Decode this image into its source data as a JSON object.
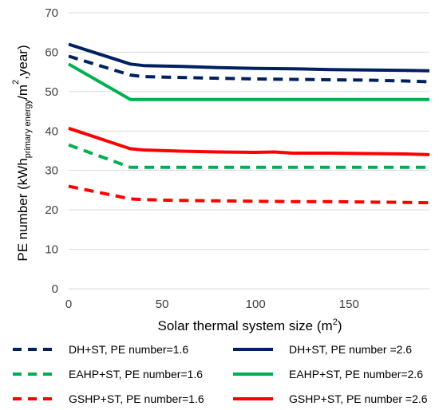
{
  "chart_data": {
    "type": "line",
    "xlabel": "Solar thermal system size (m",
    "xlabel_sup": "2",
    "xlabel_end": ")",
    "ylabel_parts": [
      {
        "t": "PE number (kWh",
        "style": "normal"
      },
      {
        "t": "primary energy",
        "style": "sub"
      },
      {
        "t": "/m",
        "style": "normal"
      },
      {
        "t": "2",
        "style": "sup"
      },
      {
        "t": ",year)",
        "style": "normal"
      }
    ],
    "xlim": [
      0,
      193
    ],
    "ylim": [
      0,
      70
    ],
    "xticks": [
      0,
      50,
      100,
      150
    ],
    "yticks": [
      0,
      10,
      20,
      30,
      40,
      50,
      60,
      70
    ],
    "grid": "horizontal",
    "legend_position": "bottom",
    "series": [
      {
        "name": "DH+ST, PE number=1.6",
        "color": "#002060",
        "dash": "dashed",
        "x": [
          0,
          33,
          40,
          60,
          80,
          100,
          120,
          140,
          160,
          180,
          193
        ],
        "y": [
          59,
          54.2,
          53.8,
          53.6,
          53.4,
          53.2,
          53.1,
          53.0,
          52.9,
          52.7,
          52.5
        ]
      },
      {
        "name": "DH+ST, PE number =2.6",
        "color": "#002060",
        "dash": "solid",
        "x": [
          0,
          33,
          40,
          60,
          80,
          100,
          120,
          140,
          160,
          180,
          193
        ],
        "y": [
          62,
          57,
          56.6,
          56.4,
          56.1,
          55.9,
          55.8,
          55.6,
          55.5,
          55.4,
          55.3
        ]
      },
      {
        "name": "EAHP+ST, PE number=1.6",
        "color": "#00B050",
        "dash": "dashed",
        "x": [
          0,
          33,
          60,
          100,
          140,
          193
        ],
        "y": [
          36.5,
          30.8,
          30.8,
          30.8,
          30.8,
          30.8
        ]
      },
      {
        "name": "EAHP+ST, PE number=2.6",
        "color": "#00B050",
        "dash": "solid",
        "x": [
          0,
          33,
          60,
          100,
          140,
          193
        ],
        "y": [
          57,
          48,
          48,
          48,
          48,
          48
        ]
      },
      {
        "name": "GSHP+ST, PE number=1.6",
        "color": "#FF0000",
        "dash": "dashed",
        "x": [
          0,
          33,
          40,
          60,
          80,
          100,
          120,
          140,
          160,
          180,
          193
        ],
        "y": [
          26,
          22.8,
          22.6,
          22.4,
          22.3,
          22.2,
          22.1,
          22.1,
          22.0,
          21.9,
          21.8
        ]
      },
      {
        "name": "GSHP+ST, PE number =2.6",
        "color": "#FF0000",
        "dash": "solid",
        "x": [
          0,
          33,
          40,
          60,
          80,
          100,
          110,
          120,
          140,
          160,
          180,
          193
        ],
        "y": [
          40.7,
          35.5,
          35.2,
          34.9,
          34.7,
          34.6,
          34.7,
          34.4,
          34.4,
          34.3,
          34.2,
          34.0
        ]
      }
    ],
    "legend_order": [
      0,
      1,
      2,
      3,
      4,
      5
    ]
  }
}
